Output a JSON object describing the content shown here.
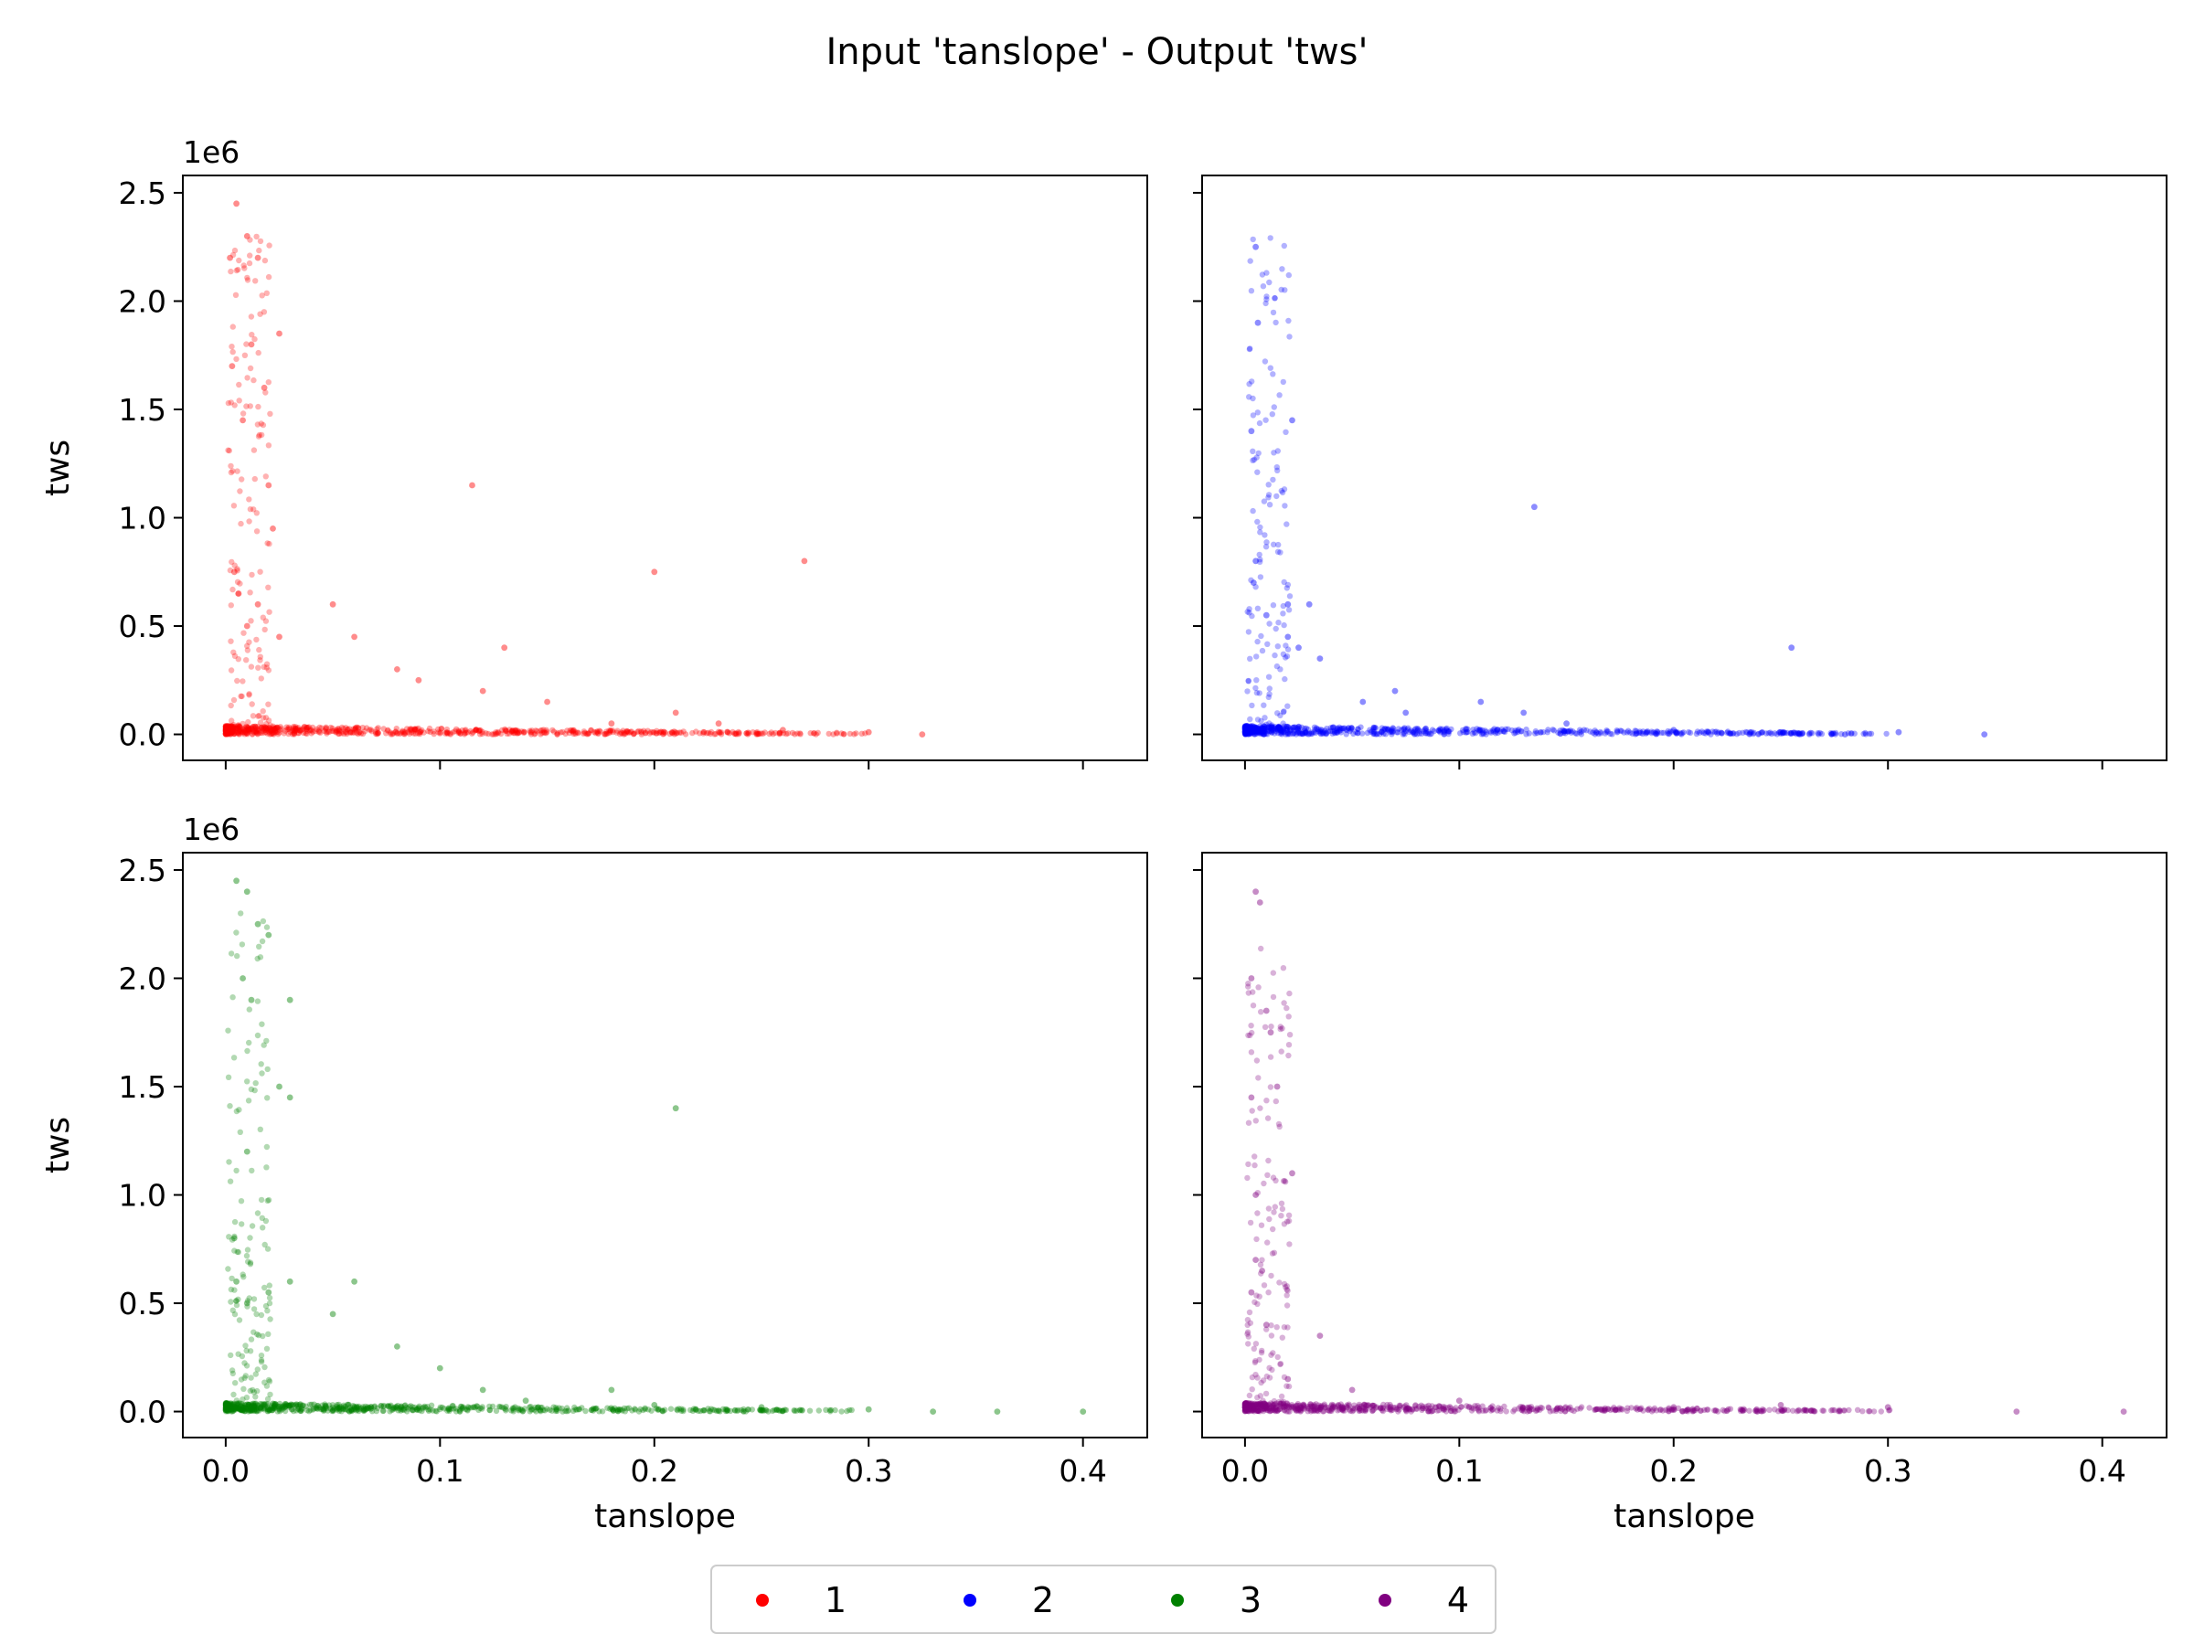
{
  "figure": {
    "title": "Input 'tanslope' - Output 'tws'"
  },
  "chart_data": {
    "type": "scatter",
    "title": "Input 'tanslope' - Output 'tws'",
    "xlabel": "tanslope",
    "ylabel": "tws",
    "y_offset_label": "1e6",
    "xlim": [
      -0.02,
      0.43
    ],
    "ylim": [
      -0.12,
      2.58
    ],
    "xticks": [
      0.0,
      0.1,
      0.2,
      0.3,
      0.4
    ],
    "xtick_labels": [
      "0.0",
      "0.1",
      "0.2",
      "0.3",
      "0.4"
    ],
    "yticks": [
      0.0,
      0.5,
      1.0,
      1.5,
      2.0,
      2.5
    ],
    "ytick_labels": [
      "0.0",
      "0.5",
      "1.0",
      "1.5",
      "2.0",
      "2.5"
    ],
    "y_unit": "1e6",
    "grid": false,
    "legend": {
      "placement": "bottom-center",
      "columns": 4
    },
    "series": [
      {
        "name": "1",
        "color": "#ff0000",
        "points": [
          [
            0.002,
            2.2
          ],
          [
            0.005,
            2.45
          ],
          [
            0.01,
            2.3
          ],
          [
            0.012,
            1.8
          ],
          [
            0.015,
            2.2
          ],
          [
            0.018,
            1.6
          ],
          [
            0.025,
            1.85
          ],
          [
            0.003,
            1.7
          ],
          [
            0.008,
            1.45
          ],
          [
            0.02,
            1.15
          ],
          [
            0.022,
            0.95
          ],
          [
            0.004,
            0.75
          ],
          [
            0.006,
            0.65
          ],
          [
            0.01,
            0.5
          ],
          [
            0.015,
            0.6
          ],
          [
            0.025,
            0.45
          ],
          [
            0.05,
            0.6
          ],
          [
            0.06,
            0.45
          ],
          [
            0.08,
            0.3
          ],
          [
            0.09,
            0.25
          ],
          [
            0.115,
            1.15
          ],
          [
            0.12,
            0.2
          ],
          [
            0.13,
            0.4
          ],
          [
            0.15,
            0.15
          ],
          [
            0.2,
            0.75
          ],
          [
            0.27,
            0.8
          ],
          [
            0.21,
            0.1
          ],
          [
            0.23,
            0.05
          ],
          [
            0.26,
            0.02
          ],
          [
            0.3,
            0.01
          ],
          [
            0.325,
            0.0
          ],
          [
            0.18,
            0.05
          ]
        ]
      },
      {
        "name": "2",
        "color": "#0000ff",
        "points": [
          [
            0.005,
            2.25
          ],
          [
            0.006,
            1.9
          ],
          [
            0.003,
            1.4
          ],
          [
            0.022,
            1.45
          ],
          [
            0.005,
            0.8
          ],
          [
            0.004,
            0.7
          ],
          [
            0.01,
            0.55
          ],
          [
            0.02,
            0.6
          ],
          [
            0.03,
            0.6
          ],
          [
            0.02,
            0.45
          ],
          [
            0.025,
            0.4
          ],
          [
            0.035,
            0.35
          ],
          [
            0.135,
            1.05
          ],
          [
            0.055,
            0.15
          ],
          [
            0.07,
            0.2
          ],
          [
            0.075,
            0.1
          ],
          [
            0.11,
            0.15
          ],
          [
            0.13,
            0.1
          ],
          [
            0.15,
            0.05
          ],
          [
            0.255,
            0.4
          ],
          [
            0.2,
            0.02
          ],
          [
            0.25,
            0.01
          ],
          [
            0.28,
            0.0
          ],
          [
            0.305,
            0.01
          ],
          [
            0.345,
            0.0
          ]
        ]
      },
      {
        "name": "3",
        "color": "#008000",
        "points": [
          [
            0.005,
            2.45
          ],
          [
            0.01,
            2.4
          ],
          [
            0.015,
            2.25
          ],
          [
            0.02,
            2.2
          ],
          [
            0.008,
            2.0
          ],
          [
            0.012,
            1.9
          ],
          [
            0.03,
            1.9
          ],
          [
            0.025,
            1.5
          ],
          [
            0.03,
            1.45
          ],
          [
            0.01,
            1.2
          ],
          [
            0.004,
            0.8
          ],
          [
            0.005,
            0.6
          ],
          [
            0.01,
            0.5
          ],
          [
            0.02,
            0.55
          ],
          [
            0.03,
            0.6
          ],
          [
            0.05,
            0.45
          ],
          [
            0.06,
            0.6
          ],
          [
            0.21,
            1.4
          ],
          [
            0.08,
            0.3
          ],
          [
            0.1,
            0.2
          ],
          [
            0.12,
            0.1
          ],
          [
            0.14,
            0.05
          ],
          [
            0.18,
            0.1
          ],
          [
            0.2,
            0.03
          ],
          [
            0.25,
            0.02
          ],
          [
            0.3,
            0.01
          ],
          [
            0.33,
            0.0
          ],
          [
            0.36,
            0.0
          ],
          [
            0.4,
            0.0
          ]
        ]
      },
      {
        "name": "4",
        "color": "#800080",
        "points": [
          [
            0.005,
            2.4
          ],
          [
            0.007,
            2.35
          ],
          [
            0.003,
            2.0
          ],
          [
            0.01,
            1.85
          ],
          [
            0.012,
            1.75
          ],
          [
            0.015,
            1.5
          ],
          [
            0.003,
            1.45
          ],
          [
            0.005,
            1.0
          ],
          [
            0.022,
            1.1
          ],
          [
            0.005,
            0.7
          ],
          [
            0.008,
            0.65
          ],
          [
            0.003,
            0.55
          ],
          [
            0.01,
            0.4
          ],
          [
            0.035,
            0.35
          ],
          [
            0.02,
            0.15
          ],
          [
            0.05,
            0.1
          ],
          [
            0.1,
            0.05
          ],
          [
            0.2,
            0.02
          ],
          [
            0.25,
            0.03
          ],
          [
            0.3,
            0.02
          ],
          [
            0.36,
            0.0
          ],
          [
            0.41,
            0.0
          ]
        ]
      }
    ]
  }
}
